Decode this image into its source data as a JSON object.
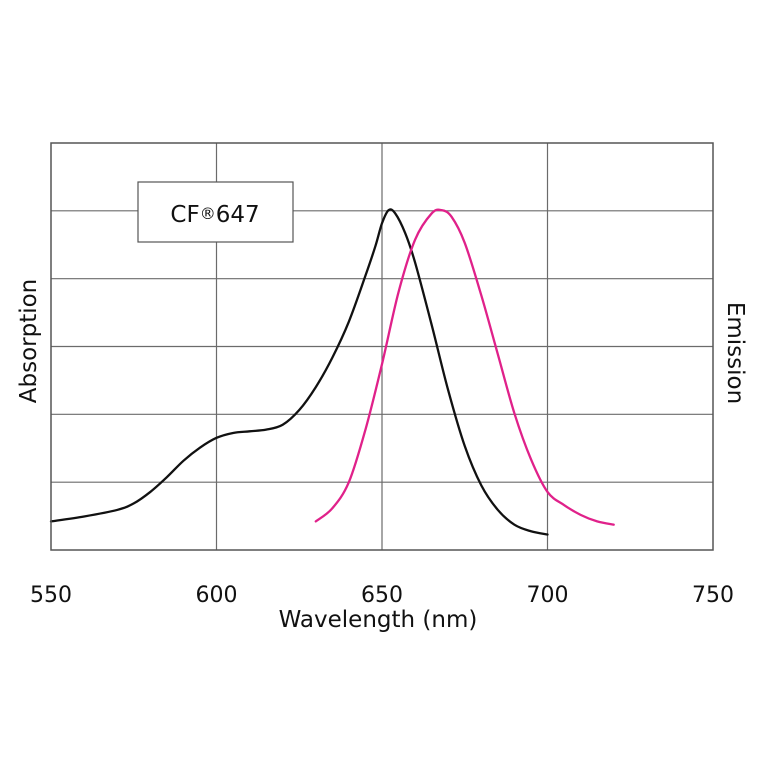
{
  "chart_data": {
    "type": "line",
    "title": "",
    "xlabel": "Wavelength (nm)",
    "ylabel_left": "Absorption",
    "ylabel_right": "Emission",
    "xlim": [
      550,
      750
    ],
    "ylim": [
      0,
      1
    ],
    "x_ticks": [
      550,
      600,
      650,
      700,
      750
    ],
    "y_gridlines": 6,
    "grid": true,
    "legend": {
      "label_prefix": "CF",
      "label_mark": "®",
      "label_suffix": "647",
      "placement": "top-left"
    },
    "series": [
      {
        "role": "absorption",
        "color": "#111111",
        "points": [
          [
            550,
            0.05
          ],
          [
            560,
            0.065
          ],
          [
            570,
            0.085
          ],
          [
            575,
            0.105
          ],
          [
            580,
            0.14
          ],
          [
            585,
            0.185
          ],
          [
            590,
            0.235
          ],
          [
            595,
            0.275
          ],
          [
            600,
            0.305
          ],
          [
            605,
            0.32
          ],
          [
            610,
            0.325
          ],
          [
            615,
            0.33
          ],
          [
            620,
            0.345
          ],
          [
            625,
            0.39
          ],
          [
            630,
            0.46
          ],
          [
            635,
            0.55
          ],
          [
            640,
            0.66
          ],
          [
            645,
            0.8
          ],
          [
            648,
            0.89
          ],
          [
            650,
            0.96
          ],
          [
            652,
            1.0
          ],
          [
            654,
            0.99
          ],
          [
            657,
            0.93
          ],
          [
            660,
            0.84
          ],
          [
            665,
            0.65
          ],
          [
            670,
            0.45
          ],
          [
            675,
            0.28
          ],
          [
            680,
            0.16
          ],
          [
            685,
            0.085
          ],
          [
            690,
            0.04
          ],
          [
            695,
            0.02
          ],
          [
            700,
            0.01
          ]
        ]
      },
      {
        "role": "emission",
        "color": "#e0218a",
        "points": [
          [
            630,
            0.05
          ],
          [
            635,
            0.09
          ],
          [
            640,
            0.17
          ],
          [
            645,
            0.33
          ],
          [
            650,
            0.53
          ],
          [
            655,
            0.75
          ],
          [
            660,
            0.91
          ],
          [
            665,
            0.99
          ],
          [
            668,
            1.0
          ],
          [
            671,
            0.98
          ],
          [
            675,
            0.9
          ],
          [
            680,
            0.74
          ],
          [
            685,
            0.56
          ],
          [
            690,
            0.38
          ],
          [
            695,
            0.24
          ],
          [
            700,
            0.14
          ],
          [
            705,
            0.1
          ],
          [
            710,
            0.07
          ],
          [
            715,
            0.05
          ],
          [
            720,
            0.04
          ]
        ]
      }
    ]
  }
}
